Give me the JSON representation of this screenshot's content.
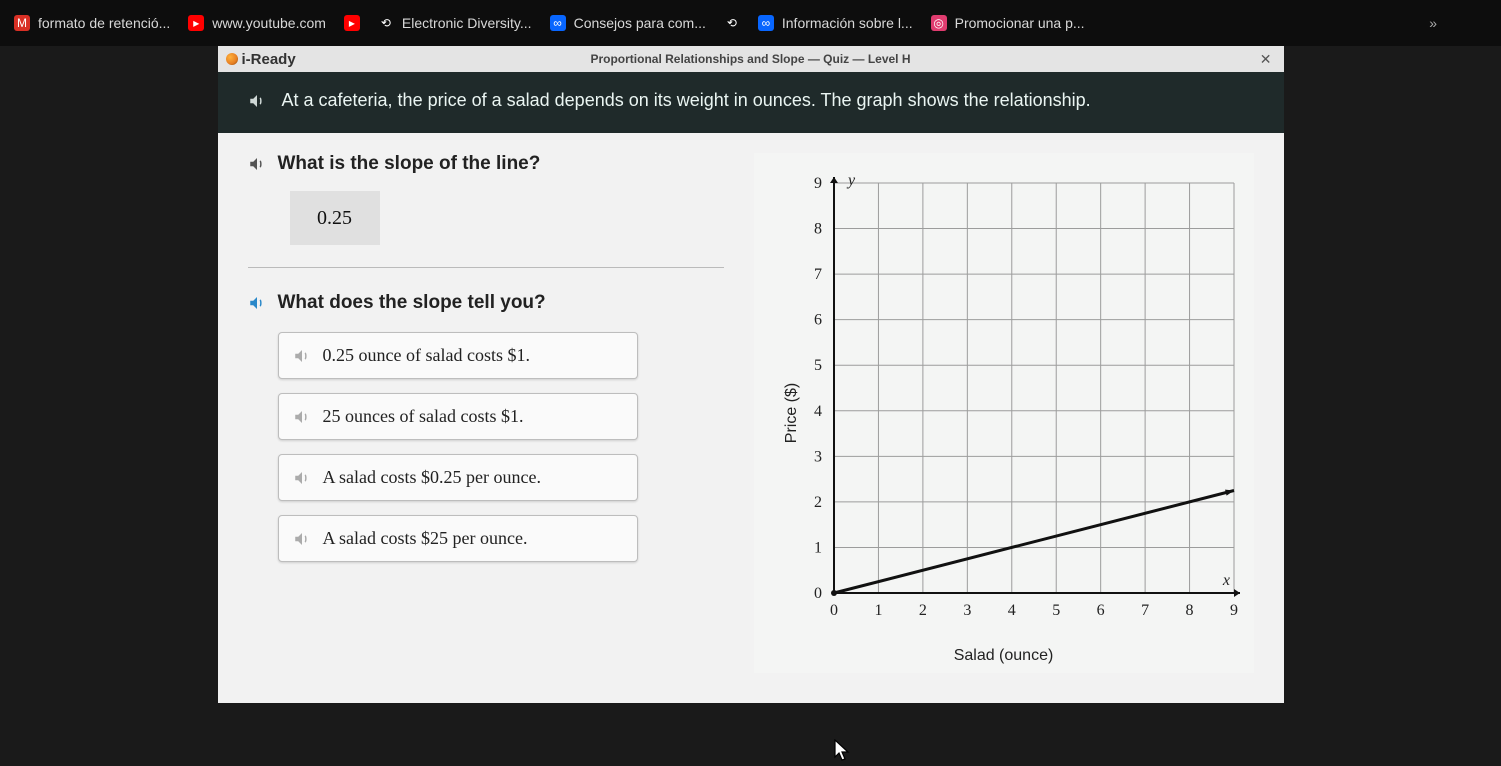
{
  "browser": {
    "tabs": [
      {
        "label": "formato de retenció...",
        "favicon_color": "#d93025",
        "favicon_glyph": "M"
      },
      {
        "label": "www.youtube.com",
        "favicon_color": "#ff0000",
        "favicon_glyph": "▸"
      },
      {
        "label": "",
        "favicon_color": "#ff0000",
        "favicon_glyph": "▸"
      },
      {
        "label": "Electronic Diversity...",
        "favicon_color": "#ffffff",
        "favicon_glyph": "⟲"
      },
      {
        "label": "Consejos para com...",
        "favicon_color": "#0866ff",
        "favicon_glyph": "∞"
      },
      {
        "label": "",
        "favicon_color": "#ffffff",
        "favicon_glyph": "⟲"
      },
      {
        "label": "Información sobre l...",
        "favicon_color": "#0866ff",
        "favicon_glyph": "∞"
      },
      {
        "label": "Promocionar una p...",
        "favicon_color": "#e03c6f",
        "favicon_glyph": "◎"
      }
    ],
    "overflow": "»"
  },
  "app": {
    "brand": "i-Ready",
    "lesson_title": "Proportional Relationships and Slope — Quiz — Level H",
    "close_label": "✕"
  },
  "prompt": {
    "text": "At a cafeteria, the price of a salad depends on its weight in ounces. The graph shows the relationship."
  },
  "question1": {
    "text": "What is the slope of the line?",
    "answer": "0.25"
  },
  "question2": {
    "text": "What does the slope tell you?",
    "options": [
      "0.25 ounce of salad costs $1.",
      "25 ounces of salad costs $1.",
      "A salad costs $0.25 per ounce.",
      "A salad costs $25 per ounce."
    ]
  },
  "chart": {
    "type": "line",
    "x_label": "Salad (ounce)",
    "y_label": "Price ($)",
    "y_var": "y",
    "x_var": "x",
    "xlim": [
      0,
      9
    ],
    "ylim": [
      0,
      9
    ],
    "xticks": [
      0,
      1,
      2,
      3,
      4,
      5,
      6,
      7,
      8,
      9
    ],
    "yticks": [
      0,
      1,
      2,
      3,
      4,
      5,
      6,
      7,
      8,
      9
    ],
    "line_points": [
      [
        0,
        0
      ],
      [
        9,
        2.25
      ]
    ],
    "line_color": "#111111",
    "line_width": 3,
    "grid_color": "#9c9c9c",
    "axis_color": "#111111",
    "background_color": "#f4f5f4",
    "tick_fontsize": 16,
    "tick_font_family": "Times New Roman, serif",
    "label_fontsize": 16
  },
  "colors": {
    "page_bg": "#1a1a1a",
    "prompt_bg": "#1f2a2a",
    "content_bg": "#f2f2f2",
    "answer_box_bg": "#e0e0e0",
    "option_border": "#bdbdbd"
  }
}
